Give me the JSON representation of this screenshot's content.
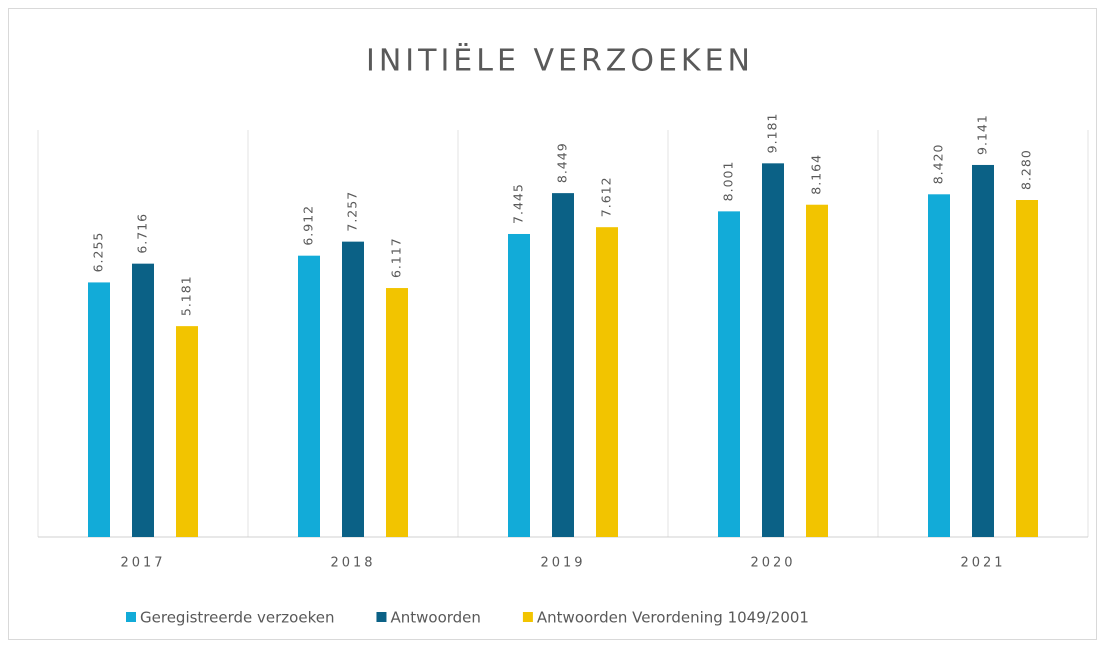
{
  "chart_data": {
    "type": "bar",
    "title": "INITIËLE VERZOEKEN",
    "categories": [
      "2017",
      "2018",
      "2019",
      "2020",
      "2021"
    ],
    "series": [
      {
        "name": "Geregistreerde verzoeken",
        "color": "#12abd8",
        "values": [
          6255,
          6912,
          7445,
          8001,
          8420
        ],
        "value_labels": [
          "6.255",
          "6.912",
          "7.445",
          "8.001",
          "8.420"
        ]
      },
      {
        "name": "Antwoorden",
        "color": "#0b6186",
        "values": [
          6716,
          7257,
          8449,
          9181,
          9141
        ],
        "value_labels": [
          "6.716",
          "7.257",
          "8.449",
          "9.181",
          "9.141"
        ]
      },
      {
        "name": "Antwoorden Verordening 1049/2001",
        "color": "#f2c400",
        "values": [
          5181,
          6117,
          7612,
          8164,
          8280
        ],
        "value_labels": [
          "5.181",
          "6.117",
          "7.612",
          "8.164",
          "8.280"
        ]
      }
    ],
    "ylim": [
      0,
      10000
    ]
  }
}
